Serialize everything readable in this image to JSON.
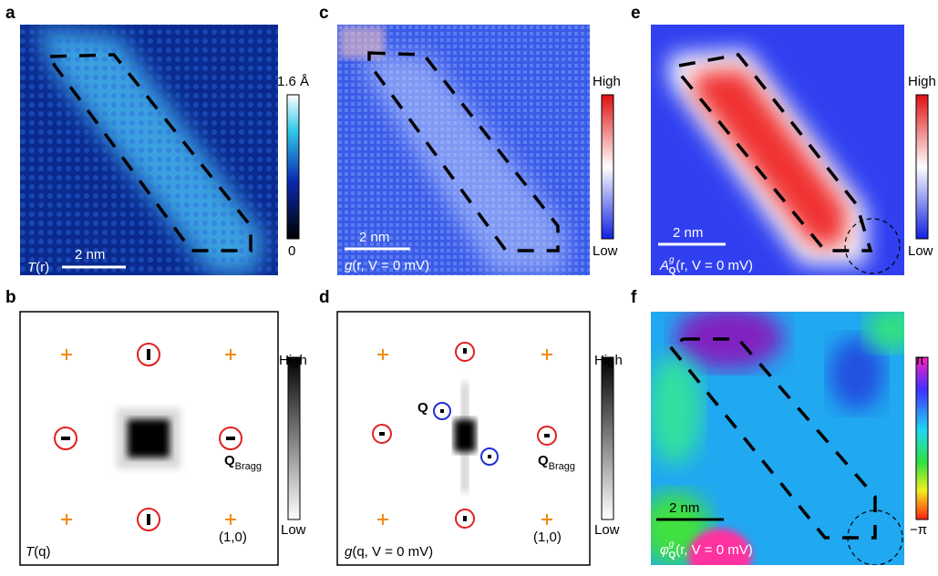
{
  "panels": {
    "a": {
      "letter": "a",
      "caption": {
        "symbol": "T",
        "args": "(r)"
      },
      "scale_bar": "2 nm",
      "colorbar": {
        "top": "1.6 Å",
        "bottom": "0"
      }
    },
    "b": {
      "letter": "b",
      "caption": {
        "symbol": "T",
        "args": "(q)"
      },
      "colorbar": {
        "top": "High",
        "bottom": "Low"
      },
      "bragg": {
        "symbol": "Q",
        "sub": "Bragg"
      },
      "index": "(1,0)"
    },
    "c": {
      "letter": "c",
      "caption": {
        "symbol": "g",
        "args": "(r, V = 0 mV)"
      },
      "scale_bar": "2 nm",
      "colorbar": {
        "top": "High",
        "bottom": "Low"
      }
    },
    "d": {
      "letter": "d",
      "caption": {
        "symbol": "g",
        "args": "(q, V = 0 mV)"
      },
      "colorbar": {
        "top": "High",
        "bottom": "Low"
      },
      "q": "Q",
      "bragg": {
        "symbol": "Q",
        "sub": "Bragg"
      },
      "index": "(1,0)"
    },
    "e": {
      "letter": "e",
      "caption": {
        "symbol": "A",
        "sup": "g",
        "sub": "Q",
        "args": "(r, V = 0 mV)"
      },
      "scale_bar": "2 nm",
      "colorbar": {
        "top": "High",
        "bottom": "Low"
      }
    },
    "f": {
      "letter": "f",
      "caption": {
        "symbol": "φ",
        "sup": "g",
        "sub": "Q",
        "args": "(r, V = 0 mV)"
      },
      "scale_bar": "2 nm",
      "colorbar": {
        "top": "π",
        "bottom": "−π"
      }
    }
  }
}
